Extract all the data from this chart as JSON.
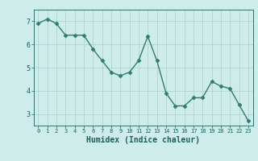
{
  "x": [
    0,
    1,
    2,
    3,
    4,
    5,
    6,
    7,
    8,
    9,
    10,
    11,
    12,
    13,
    14,
    15,
    16,
    17,
    18,
    19,
    20,
    21,
    22,
    23
  ],
  "y": [
    6.9,
    7.1,
    6.9,
    6.4,
    6.4,
    6.4,
    5.8,
    5.3,
    4.8,
    4.65,
    4.8,
    5.3,
    6.35,
    5.3,
    3.9,
    3.35,
    3.35,
    3.7,
    3.7,
    4.4,
    4.2,
    4.1,
    3.4,
    2.7
  ],
  "line_color": "#2e7d6e",
  "marker": "D",
  "marker_size": 2.5,
  "bg_color": "#ceecea",
  "grid_color": "#aed4d0",
  "xlabel": "Humidex (Indice chaleur)",
  "ylim": [
    2.5,
    7.5
  ],
  "xlim": [
    -0.5,
    23.5
  ],
  "yticks": [
    3,
    4,
    5,
    6,
    7
  ],
  "xticks": [
    0,
    1,
    2,
    3,
    4,
    5,
    6,
    7,
    8,
    9,
    10,
    11,
    12,
    13,
    14,
    15,
    16,
    17,
    18,
    19,
    20,
    21,
    22,
    23
  ],
  "font_color": "#1a5f5a",
  "xlabel_fontsize": 7,
  "xtick_fontsize": 5,
  "ytick_fontsize": 6
}
